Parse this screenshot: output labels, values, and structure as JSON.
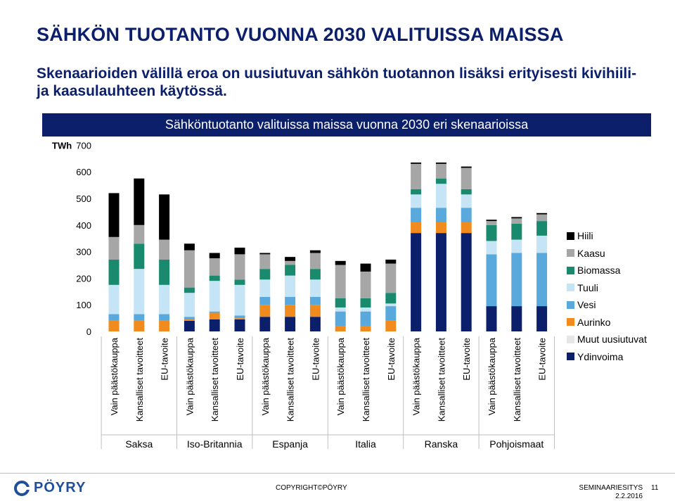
{
  "slide": {
    "title": "SÄHKÖN TUOTANTO VUONNA 2030 VALITUISSA MAISSA",
    "subtitle": "Skenaarioiden välillä eroa on uusiutuvan sähkön tuotannon lisäksi erityisesti kivihiili- ja kaasulauhteen käytössä.",
    "copyright": "COPYRIGHT©PÖYRY",
    "seminar": "SEMINAARIESITYS",
    "date": "2.2.2016",
    "page_number": "11",
    "logo_text": "PÖYRY"
  },
  "chart_data": {
    "type": "bar",
    "stacked": true,
    "title": "Sähköntuotanto valituissa maissa vuonna 2030 eri skenaarioissa",
    "ylabel": "TWh",
    "ylim": [
      0,
      700
    ],
    "yticks": [
      0,
      100,
      200,
      300,
      400,
      500,
      600,
      700
    ],
    "legend_position": "right",
    "groups": [
      "Saksa",
      "Iso-Britannia",
      "Espanja",
      "Italia",
      "Ranska",
      "Pohjoismaat"
    ],
    "scenarios": [
      "Vain päästökauppa",
      "Kansalliset tavoitteet",
      "EU-tavoite"
    ],
    "categories": [
      "Vain päästökauppa",
      "Kansalliset tavoitteet",
      "EU-tavoite",
      "Vain päästökauppa",
      "Kansalliset tavoitteet",
      "EU-tavoite",
      "Vain päästökauppa",
      "Kansalliset tavoitteet",
      "EU-tavoite",
      "Vain päästökauppa",
      "Kansalliset tavoitteet",
      "EU-tavoite",
      "Vain päästökauppa",
      "Kansalliset tavoitteet",
      "EU-tavoite",
      "Vain päästökauppa",
      "Kansalliset tavoitteet",
      "EU-tavoite"
    ],
    "series": [
      {
        "name": "Ydinvoima",
        "color": "#0b1f6b",
        "values": [
          0,
          0,
          0,
          40,
          45,
          45,
          55,
          55,
          55,
          0,
          0,
          0,
          370,
          370,
          370,
          95,
          95,
          95
        ]
      },
      {
        "name": "Muut uusiutuvat",
        "color": "#e6e6e6",
        "values": [
          0,
          0,
          0,
          0,
          0,
          0,
          0,
          0,
          0,
          0,
          0,
          0,
          0,
          0,
          0,
          0,
          0,
          0
        ]
      },
      {
        "name": "Aurinko",
        "color": "#f28b1e",
        "values": [
          40,
          40,
          40,
          5,
          25,
          5,
          45,
          45,
          45,
          20,
          20,
          40,
          40,
          40,
          40,
          0,
          0,
          0
        ]
      },
      {
        "name": "Vesi",
        "color": "#5aa9dd",
        "values": [
          25,
          25,
          25,
          10,
          5,
          10,
          30,
          30,
          30,
          55,
          55,
          55,
          55,
          55,
          55,
          195,
          200,
          200
        ]
      },
      {
        "name": "Tuuli",
        "color": "#c5e4f5",
        "values": [
          110,
          170,
          110,
          90,
          115,
          115,
          65,
          80,
          65,
          15,
          15,
          10,
          50,
          90,
          50,
          50,
          50,
          65
        ]
      },
      {
        "name": "Biomassa",
        "color": "#1a8a6e",
        "values": [
          95,
          95,
          95,
          20,
          20,
          20,
          40,
          40,
          40,
          35,
          35,
          40,
          20,
          20,
          20,
          60,
          60,
          55
        ]
      },
      {
        "name": "Kaasu",
        "color": "#a6a6a6",
        "values": [
          85,
          70,
          75,
          140,
          65,
          95,
          55,
          15,
          60,
          125,
          100,
          110,
          95,
          55,
          80,
          15,
          20,
          25
        ]
      },
      {
        "name": "Hiili",
        "color": "#000000",
        "values": [
          165,
          175,
          170,
          25,
          20,
          25,
          5,
          15,
          10,
          15,
          30,
          15,
          5,
          5,
          5,
          5,
          5,
          5
        ]
      }
    ],
    "legend_order": [
      "Hiili",
      "Kaasu",
      "Biomassa",
      "Tuuli",
      "Vesi",
      "Aurinko",
      "Muut uusiutuvat",
      "Ydinvoima"
    ]
  }
}
